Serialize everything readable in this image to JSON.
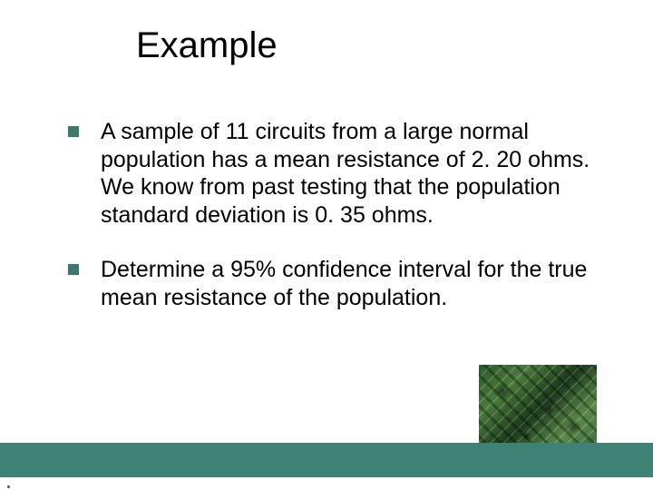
{
  "slide": {
    "title": "Example",
    "bullets": [
      "A sample of 11 circuits from a large normal population has a mean resistance of 2. 20 ohms.  We know from past testing that the population standard deviation is 0. 35 ohms.",
      "Determine a 95% confidence interval for the true mean resistance of the population."
    ]
  },
  "style": {
    "title_color": "#000000",
    "title_fontsize": 40,
    "body_color": "#000000",
    "body_fontsize": 25,
    "bullet_marker_color": "#3a7a6e",
    "footer_bar_color": "#3d8274",
    "background_color": "#ffffff",
    "slide_width": 720,
    "slide_height": 540
  }
}
